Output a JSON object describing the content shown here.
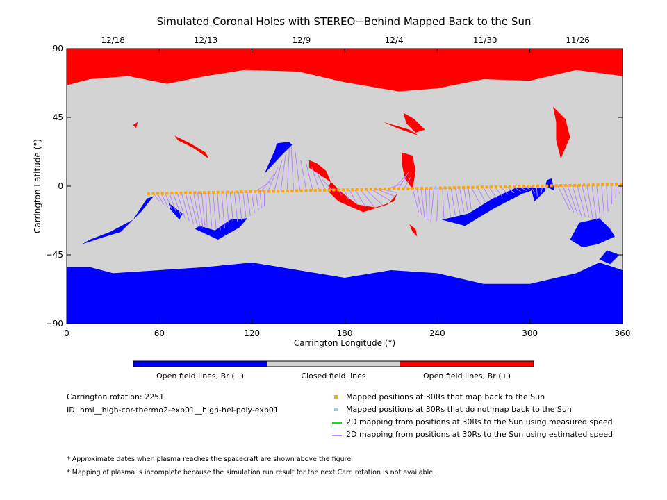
{
  "chart_data": {
    "type": "heatmap",
    "title": "Simulated Coronal Holes with STEREO−Behind Mapped Back to the Sun",
    "xlabel": "Carrington Longitude (°)",
    "ylabel": "Carrington Latitude (°)",
    "xlim": [
      0,
      360
    ],
    "ylim": [
      -90,
      90
    ],
    "x_ticks": [
      0,
      60,
      120,
      180,
      240,
      300,
      360
    ],
    "y_ticks": [
      90,
      45,
      0,
      -45,
      -90
    ],
    "y_tick_labels": [
      "90",
      "45",
      "0",
      "−45",
      "−90"
    ],
    "top_axis_dates": [
      {
        "label": "12/18",
        "lon": 30
      },
      {
        "label": "12/13",
        "lon": 90
      },
      {
        "label": "12/9",
        "lon": 152
      },
      {
        "label": "12/4",
        "lon": 212
      },
      {
        "label": "11/30",
        "lon": 271
      },
      {
        "label": "11/26",
        "lon": 331
      }
    ],
    "colorbar": [
      {
        "label": "Open field lines, Br (−)",
        "color": "#0000ff"
      },
      {
        "label": "Closed field lines",
        "color": "#d3d3d3"
      },
      {
        "label": "Open field lines, Br (+)",
        "color": "#ff0000"
      }
    ],
    "regions": {
      "positive_open": [
        [
          [
            0,
            90
          ],
          [
            360,
            90
          ],
          [
            360,
            72
          ],
          [
            330,
            76
          ],
          [
            300,
            69
          ],
          [
            270,
            70
          ],
          [
            240,
            64
          ],
          [
            215,
            62
          ],
          [
            180,
            68
          ],
          [
            150,
            75
          ],
          [
            115,
            76
          ],
          [
            90,
            72
          ],
          [
            65,
            67
          ],
          [
            40,
            72
          ],
          [
            15,
            70
          ],
          [
            0,
            66
          ]
        ],
        [
          [
            218,
            48
          ],
          [
            225,
            44
          ],
          [
            232,
            37
          ],
          [
            226,
            35
          ],
          [
            220,
            41
          ]
        ],
        [
          [
            205,
            42
          ],
          [
            222,
            37
          ],
          [
            228,
            33
          ],
          [
            214,
            38
          ]
        ],
        [
          [
            315,
            52
          ],
          [
            323,
            44
          ],
          [
            326,
            32
          ],
          [
            320,
            18
          ],
          [
            317,
            30
          ],
          [
            317,
            42
          ]
        ],
        [
          [
            70,
            33
          ],
          [
            80,
            28
          ],
          [
            90,
            22
          ],
          [
            92,
            18
          ],
          [
            82,
            25
          ],
          [
            72,
            30
          ]
        ],
        [
          [
            43,
            40
          ],
          [
            46,
            42
          ],
          [
            45,
            38
          ]
        ],
        [
          [
            157,
            17
          ],
          [
            162,
            15
          ],
          [
            168,
            10
          ],
          [
            171,
            3
          ],
          [
            169,
            -3
          ],
          [
            176,
            -10
          ],
          [
            192,
            -17
          ],
          [
            208,
            -12
          ],
          [
            214,
            -5
          ],
          [
            212,
            -10
          ],
          [
            200,
            -14
          ],
          [
            188,
            -12
          ],
          [
            178,
            -4
          ],
          [
            172,
            2
          ],
          [
            163,
            8
          ],
          [
            157,
            12
          ]
        ],
        [
          [
            217,
            22
          ],
          [
            224,
            20
          ],
          [
            226,
            10
          ],
          [
            224,
            -2
          ],
          [
            219,
            5
          ],
          [
            217,
            15
          ]
        ],
        [
          [
            222,
            -25
          ],
          [
            226,
            -28
          ],
          [
            227,
            -33
          ],
          [
            224,
            -30
          ]
        ]
      ],
      "negative_open": [
        [
          [
            0,
            -53
          ],
          [
            15,
            -53
          ],
          [
            30,
            -57
          ],
          [
            60,
            -55
          ],
          [
            90,
            -53
          ],
          [
            120,
            -50
          ],
          [
            150,
            -55
          ],
          [
            180,
            -60
          ],
          [
            210,
            -55
          ],
          [
            240,
            -57
          ],
          [
            270,
            -64
          ],
          [
            300,
            -64
          ],
          [
            330,
            -57
          ],
          [
            345,
            -50
          ],
          [
            360,
            -55
          ],
          [
            360,
            -90
          ],
          [
            0,
            -90
          ]
        ],
        [
          [
            10,
            -38
          ],
          [
            22,
            -34
          ],
          [
            35,
            -30
          ],
          [
            48,
            -17
          ],
          [
            56,
            -7
          ],
          [
            52,
            -8
          ],
          [
            43,
            -22
          ],
          [
            28,
            -30
          ],
          [
            15,
            -35
          ],
          [
            10,
            -38
          ]
        ],
        [
          [
            83,
            -28
          ],
          [
            98,
            -35
          ],
          [
            112,
            -27
          ],
          [
            117,
            -21
          ],
          [
            106,
            -22
          ],
          [
            96,
            -29
          ],
          [
            86,
            -26
          ]
        ],
        [
          [
            243,
            -22
          ],
          [
            258,
            -26
          ],
          [
            276,
            -15
          ],
          [
            295,
            -5
          ],
          [
            301,
            -3
          ],
          [
            303,
            -10
          ],
          [
            310,
            -3
          ],
          [
            310,
            -1
          ],
          [
            291,
            -1
          ],
          [
            276,
            -8
          ],
          [
            260,
            -18
          ],
          [
            247,
            -21
          ]
        ],
        [
          [
            310,
            0
          ],
          [
            316,
            -3
          ],
          [
            314,
            5
          ],
          [
            311,
            4
          ]
        ],
        [
          [
            326,
            -35
          ],
          [
            332,
            -24
          ],
          [
            345,
            -21
          ],
          [
            352,
            -28
          ],
          [
            355,
            -33
          ],
          [
            344,
            -38
          ],
          [
            334,
            -40
          ]
        ],
        [
          [
            358,
            -45
          ],
          [
            350,
            -42
          ],
          [
            345,
            -48
          ],
          [
            352,
            -51
          ]
        ],
        [
          [
            136,
            28
          ],
          [
            144,
            29
          ],
          [
            146,
            27
          ],
          [
            139,
            20
          ],
          [
            128,
            8
          ],
          [
            135,
            24
          ]
        ],
        [
          [
            66,
            -11
          ],
          [
            75,
            -18
          ],
          [
            73,
            -22
          ],
          [
            67,
            -15
          ]
        ]
      ]
    },
    "mapped_positions_30Rs": {
      "lon": [
        53,
        56,
        59,
        62,
        65,
        68,
        71,
        74,
        77,
        80,
        83,
        86,
        89,
        92,
        95,
        98,
        101,
        104,
        107,
        110,
        113,
        116,
        119,
        122,
        125,
        128,
        131,
        134,
        137,
        140,
        143,
        146,
        149,
        152,
        155,
        158,
        161,
        164,
        167,
        170,
        173,
        176,
        179,
        182,
        185,
        188,
        191,
        194,
        197,
        200,
        203,
        206,
        209,
        212,
        215,
        218,
        221,
        224,
        227,
        230,
        233,
        236,
        239,
        242,
        245,
        248,
        251,
        254,
        257,
        260,
        263,
        266,
        269,
        272,
        275,
        278,
        281,
        284,
        287,
        290,
        293,
        296,
        299,
        302,
        305,
        308,
        311,
        314,
        317,
        320,
        323,
        326,
        329,
        332,
        335,
        338,
        341,
        344,
        347,
        350,
        353,
        356,
        359
      ],
      "lat": [
        -4.9,
        -4.8,
        -4.8,
        -4.7,
        -4.7,
        -4.6,
        -4.6,
        -4.5,
        -4.4,
        -4.4,
        -4.3,
        -4.3,
        -4.2,
        -4.1,
        -4.1,
        -4.0,
        -4.0,
        -3.9,
        -3.9,
        -3.8,
        -3.7,
        -3.7,
        -3.6,
        -3.6,
        -3.5,
        -3.4,
        -3.4,
        -3.3,
        -3.3,
        -3.2,
        -3.1,
        -3.1,
        -3.0,
        -3.0,
        -2.9,
        -2.8,
        -2.8,
        -2.7,
        -2.7,
        -2.6,
        -2.5,
        -2.5,
        -2.4,
        -2.4,
        -2.3,
        -2.2,
        -2.2,
        -2.1,
        -2.1,
        -2.0,
        -2.0,
        -1.9,
        -1.8,
        -1.8,
        -1.7,
        -1.7,
        -1.6,
        -1.5,
        -1.5,
        -1.4,
        -1.4,
        -1.3,
        -1.2,
        -1.2,
        -1.1,
        -1.1,
        -1.0,
        -0.9,
        -0.9,
        -0.8,
        -0.8,
        -0.7,
        -0.6,
        -0.6,
        -0.5,
        -0.5,
        -0.4,
        -0.3,
        -0.3,
        -0.2,
        -0.2,
        -0.1,
        0.0,
        0.0,
        0.1,
        0.1,
        0.2,
        0.3,
        0.3,
        0.4,
        0.4,
        0.5,
        0.5,
        0.6,
        0.7,
        0.7,
        0.8,
        0.8,
        0.9,
        1.0,
        1.0,
        1.1,
        1.1
      ]
    },
    "mapped_positions_not_back": {
      "lon": [
        239
      ],
      "lat": [
        -1.2
      ]
    },
    "estimated_speed_mapping": [
      {
        "from_lon": [
          56,
          90
        ],
        "to": [
          [
            60,
            -10
          ],
          [
            66,
            -14
          ],
          [
            72,
            -18
          ],
          [
            78,
            -22
          ],
          [
            84,
            -26
          ],
          [
            88,
            -27
          ],
          [
            91,
            -27
          ]
        ]
      },
      {
        "from_lon": [
          92,
          128
        ],
        "to": [
          [
            94,
            -27
          ],
          [
            100,
            -29
          ],
          [
            106,
            -25
          ],
          [
            112,
            -23
          ],
          [
            118,
            -20
          ],
          [
            124,
            -16
          ],
          [
            128,
            -13
          ]
        ]
      },
      {
        "from_lon": [
          122,
          176
        ],
        "to": [
          [
            132,
            3
          ],
          [
            136,
            11
          ],
          [
            140,
            18
          ],
          [
            144,
            24
          ],
          [
            146,
            27
          ],
          [
            152,
            16
          ],
          [
            158,
            13
          ],
          [
            163,
            8
          ],
          [
            170,
            -2
          ]
        ]
      },
      {
        "from_lon": [
          176,
          222
        ],
        "to": [
          [
            178,
            -6
          ],
          [
            186,
            -11
          ],
          [
            195,
            -14
          ],
          [
            204,
            -13
          ],
          [
            212,
            -8
          ],
          [
            214,
            -4
          ],
          [
            219,
            6
          ],
          [
            222,
            10
          ],
          [
            224,
            -1
          ]
        ]
      },
      {
        "from_lon": [
          224,
          260
        ],
        "to": [
          [
            228,
            -17
          ],
          [
            233,
            -22
          ],
          [
            236,
            -24
          ],
          [
            248,
            -20
          ],
          [
            256,
            -18
          ],
          [
            262,
            -15
          ]
        ]
      },
      {
        "from_lon": [
          262,
          312
        ],
        "to": [
          [
            268,
            -12
          ],
          [
            274,
            -9
          ],
          [
            281,
            -7
          ],
          [
            288,
            -5
          ],
          [
            296,
            -3
          ],
          [
            302,
            -3
          ],
          [
            305,
            -7
          ],
          [
            310,
            -2
          ]
        ]
      },
      {
        "from_lon": [
          318,
          359
        ],
        "to": [
          [
            326,
            -16
          ],
          [
            330,
            -18
          ],
          [
            334,
            -20
          ],
          [
            338,
            -20
          ],
          [
            342,
            -22
          ],
          [
            346,
            -22
          ],
          [
            350,
            -18
          ],
          [
            354,
            -10
          ],
          [
            358,
            -5
          ]
        ]
      }
    ],
    "legend": [
      {
        "marker": "square",
        "color": "#ffa500",
        "label": "Mapped positions at 30Rs that map back to the Sun"
      },
      {
        "marker": "square",
        "color": "#87cefa",
        "label": "Mapped positions at 30Rs that do not map back to the Sun"
      },
      {
        "marker": "line",
        "color": "#00ee00",
        "label": "2D mapping from positions at 30Rs to the Sun using measured speed"
      },
      {
        "marker": "line",
        "color": "#b583ff",
        "label": "2D mapping from positions at 30Rs to the Sun using estimated speed"
      }
    ],
    "colors": {
      "positive": "#ff0000",
      "negative": "#0000ff",
      "closed": "#d3d3d3",
      "orange": "#ffa500",
      "violet": "#b583ff"
    }
  },
  "info": {
    "rotation_text": "Carrington rotation: 2251",
    "id_text": "ID: hmi__high-cor-thermo2-exp01__high-hel-poly-exp01"
  },
  "notes": [
    "* Approximate dates when plasma reaches the spacecraft are shown above the figure.",
    "* Mapping of plasma is incomplete because the simulation run result for the next Carr. rotation is not available."
  ]
}
